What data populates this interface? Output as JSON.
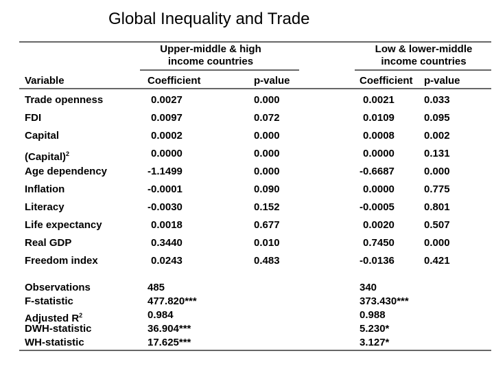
{
  "title": "Global Inequality and Trade",
  "groups": [
    {
      "line1": "Upper-middle & high",
      "line2": "income countries"
    },
    {
      "line1": "Low & lower-middle",
      "line2": "income countries"
    }
  ],
  "headers": {
    "variable": "Variable",
    "coef": "Coefficient",
    "pval": "p-value"
  },
  "rows": [
    {
      "var": "Trade openness",
      "c1": "0.0027",
      "p1": "0.000",
      "c2": "0.0021",
      "p2": "0.033"
    },
    {
      "var": "FDI",
      "c1": "0.0097",
      "p1": "0.072",
      "c2": "0.0109",
      "p2": "0.095"
    },
    {
      "var": "Capital",
      "c1": "0.0002",
      "p1": "0.000",
      "c2": "0.0008",
      "p2": "0.002"
    },
    {
      "var": "(Capital)",
      "sup": "2",
      "c1": "0.0000",
      "p1": "0.000",
      "c2": "0.0000",
      "p2": "0.131"
    },
    {
      "var": "Age dependency",
      "c1": "-1.1499",
      "p1": "0.000",
      "c2": "-0.6687",
      "p2": "0.000"
    },
    {
      "var": "Inflation",
      "c1": "-0.0001",
      "p1": "0.090",
      "c2": "0.0000",
      "p2": "0.775"
    },
    {
      "var": "Literacy",
      "c1": "-0.0030",
      "p1": "0.152",
      "c2": "-0.0005",
      "p2": "0.801"
    },
    {
      "var": "Life expectancy",
      "c1": "0.0018",
      "p1": "0.677",
      "c2": "0.0020",
      "p2": "0.507"
    },
    {
      "var": "Real GDP",
      "c1": "0.3440",
      "p1": "0.010",
      "c2": "0.7450",
      "p2": "0.000"
    },
    {
      "var": "Freedom index",
      "c1": "0.0243",
      "p1": "0.483",
      "c2": "-0.0136",
      "p2": "0.421"
    }
  ],
  "stats": [
    {
      "label": "Observations",
      "v1": "485",
      "v2": "340"
    },
    {
      "label": "F-statistic",
      "v1": "477.820***",
      "v2": "373.430***"
    },
    {
      "label": "Adjusted R",
      "sup": "2",
      "v1": "0.984",
      "v2": "0.988"
    },
    {
      "label": "DWH-statistic",
      "v1": "36.904***",
      "v2": "5.230*"
    },
    {
      "label": "WH-statistic",
      "v1": "17.625***",
      "v2": "3.127*"
    }
  ]
}
